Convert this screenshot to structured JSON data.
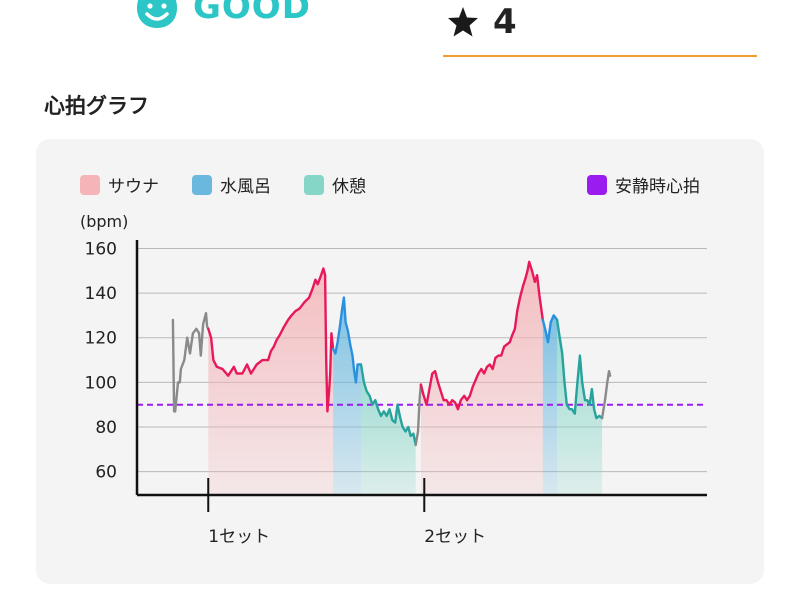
{
  "header": {
    "status_label": "GOOD",
    "status_icon": "smiley-face-icon",
    "rating_icon": "star-icon",
    "rating_value": "4"
  },
  "section_title": "心拍グラフ",
  "colors": {
    "status": "#2cc6c6",
    "rating_underline": "#f0a030",
    "sauna": "#f4b4b8",
    "sauna_line": "#e8195a",
    "cold_bath": "#6ab8de",
    "cold_bath_line": "#2a90e0",
    "rest": "#86d6c8",
    "rest_line": "#27a39e",
    "resting_hr": "#9b1cf0",
    "other_line": "#8a8a8a"
  },
  "chart_data": {
    "type": "line",
    "title": "",
    "xlabel": "",
    "ylabel": "(bpm)",
    "ylim": [
      50,
      165
    ],
    "yticks": [
      60,
      80,
      100,
      120,
      140,
      160
    ],
    "xlim": [
      0,
      100
    ],
    "x_ticks": [
      {
        "x": 12.5,
        "label": "1セット"
      },
      {
        "x": 50.4,
        "label": "2セット"
      }
    ],
    "grid": true,
    "legend": [
      {
        "name": "サウナ",
        "color": "#f4b4b8"
      },
      {
        "name": "水風呂",
        "color": "#6ab8de"
      },
      {
        "name": "休憩",
        "color": "#86d6c8"
      },
      {
        "name": "安静時心拍",
        "color": "#9b1cf0"
      }
    ],
    "resting_hr": 90,
    "phases": [
      {
        "type": "sauna",
        "start": 12.5,
        "end": 34.4
      },
      {
        "type": "cold",
        "start": 34.4,
        "end": 39.3
      },
      {
        "type": "rest",
        "start": 39.3,
        "end": 48.9
      },
      {
        "type": "sauna",
        "start": 49.8,
        "end": 71.2
      },
      {
        "type": "cold",
        "start": 71.2,
        "end": 73.7
      },
      {
        "type": "rest",
        "start": 73.7,
        "end": 81.6
      }
    ],
    "segments": [
      {
        "type": "other",
        "points": [
          [
            6.3,
            128
          ],
          [
            6.5,
            87
          ],
          [
            6.7,
            87
          ],
          [
            7.2,
            100
          ],
          [
            7.5,
            100
          ],
          [
            7.7,
            106
          ],
          [
            8.3,
            110
          ],
          [
            8.8,
            120
          ],
          [
            9.3,
            113
          ],
          [
            9.8,
            122
          ],
          [
            10.4,
            124
          ],
          [
            10.9,
            122
          ],
          [
            11.2,
            112
          ],
          [
            11.6,
            126
          ],
          [
            12.1,
            131
          ],
          [
            12.3,
            125
          ],
          [
            12.5,
            124
          ]
        ]
      },
      {
        "type": "sauna",
        "points": [
          [
            12.5,
            124
          ],
          [
            13.0,
            120
          ],
          [
            13.4,
            110
          ],
          [
            14.0,
            107
          ],
          [
            15.0,
            106
          ],
          [
            16.0,
            103
          ],
          [
            17.0,
            107
          ],
          [
            17.5,
            104
          ],
          [
            18.5,
            104
          ],
          [
            19.3,
            108
          ],
          [
            20.0,
            104
          ],
          [
            21.0,
            108
          ],
          [
            22.0,
            110
          ],
          [
            23.0,
            110
          ],
          [
            23.5,
            114
          ],
          [
            24.0,
            116
          ],
          [
            24.5,
            119
          ],
          [
            25.0,
            121
          ],
          [
            25.8,
            125
          ],
          [
            26.5,
            128
          ],
          [
            27.1,
            130
          ],
          [
            27.8,
            132
          ],
          [
            28.5,
            133
          ],
          [
            29.4,
            136
          ],
          [
            30.2,
            138
          ],
          [
            30.8,
            142
          ],
          [
            31.3,
            146
          ],
          [
            31.7,
            144
          ],
          [
            32.3,
            148
          ],
          [
            32.7,
            151
          ],
          [
            33.0,
            148
          ],
          [
            33.2,
            110
          ],
          [
            33.4,
            87
          ],
          [
            33.7,
            96
          ],
          [
            33.9,
            104
          ],
          [
            34.1,
            122
          ],
          [
            34.4,
            115
          ]
        ]
      },
      {
        "type": "cold",
        "points": [
          [
            34.4,
            115
          ],
          [
            34.8,
            113
          ],
          [
            35.2,
            118
          ],
          [
            35.6,
            125
          ],
          [
            36.0,
            133
          ],
          [
            36.3,
            138
          ],
          [
            36.6,
            127
          ],
          [
            37.0,
            123
          ],
          [
            37.4,
            117
          ],
          [
            37.8,
            112
          ],
          [
            38.1,
            105
          ],
          [
            38.4,
            100
          ],
          [
            38.7,
            108
          ],
          [
            39.3,
            108
          ]
        ]
      },
      {
        "type": "rest",
        "points": [
          [
            39.3,
            108
          ],
          [
            39.8,
            100
          ],
          [
            40.3,
            96
          ],
          [
            40.8,
            94
          ],
          [
            41.3,
            90
          ],
          [
            41.8,
            92
          ],
          [
            42.3,
            88
          ],
          [
            42.8,
            85
          ],
          [
            43.3,
            87
          ],
          [
            43.8,
            85
          ],
          [
            44.3,
            88
          ],
          [
            44.8,
            83
          ],
          [
            45.3,
            82
          ],
          [
            45.7,
            90
          ],
          [
            46.2,
            84
          ],
          [
            46.6,
            80
          ],
          [
            47.1,
            78
          ],
          [
            47.6,
            80
          ],
          [
            48.0,
            76
          ],
          [
            48.5,
            77
          ],
          [
            48.9,
            72
          ]
        ]
      },
      {
        "type": "other",
        "points": [
          [
            48.9,
            72
          ],
          [
            49.3,
            78
          ],
          [
            49.6,
            93
          ],
          [
            49.8,
            99
          ]
        ]
      },
      {
        "type": "sauna",
        "points": [
          [
            49.8,
            99
          ],
          [
            50.3,
            94
          ],
          [
            50.8,
            90
          ],
          [
            51.3,
            97
          ],
          [
            51.8,
            104
          ],
          [
            52.3,
            105
          ],
          [
            52.8,
            100
          ],
          [
            53.3,
            96
          ],
          [
            53.8,
            92
          ],
          [
            54.3,
            92
          ],
          [
            54.8,
            90
          ],
          [
            55.3,
            92
          ],
          [
            55.8,
            91
          ],
          [
            56.3,
            88
          ],
          [
            56.8,
            92
          ],
          [
            57.4,
            94
          ],
          [
            57.9,
            92
          ],
          [
            58.4,
            94
          ],
          [
            58.9,
            98
          ],
          [
            59.4,
            101
          ],
          [
            59.9,
            104
          ],
          [
            60.4,
            106
          ],
          [
            60.9,
            104
          ],
          [
            61.4,
            107
          ],
          [
            61.9,
            108
          ],
          [
            62.4,
            106
          ],
          [
            62.9,
            111
          ],
          [
            63.4,
            112
          ],
          [
            63.9,
            112
          ],
          [
            64.4,
            116
          ],
          [
            64.9,
            117
          ],
          [
            65.4,
            118
          ],
          [
            65.8,
            121
          ],
          [
            66.3,
            124
          ],
          [
            66.7,
            132
          ],
          [
            67.2,
            138
          ],
          [
            67.7,
            143
          ],
          [
            68.2,
            147
          ],
          [
            68.5,
            150
          ],
          [
            68.8,
            154
          ],
          [
            69.3,
            150
          ],
          [
            69.8,
            145
          ],
          [
            70.2,
            148
          ],
          [
            70.6,
            139
          ],
          [
            71.2,
            128
          ]
        ]
      },
      {
        "type": "cold",
        "points": [
          [
            71.2,
            128
          ],
          [
            71.6,
            124
          ],
          [
            72.1,
            118
          ],
          [
            72.6,
            127
          ],
          [
            73.1,
            130
          ],
          [
            73.7,
            128
          ]
        ]
      },
      {
        "type": "rest",
        "points": [
          [
            73.7,
            128
          ],
          [
            74.1,
            121
          ],
          [
            74.6,
            113
          ],
          [
            75.0,
            100
          ],
          [
            75.4,
            90
          ],
          [
            75.9,
            88
          ],
          [
            76.3,
            88
          ],
          [
            76.8,
            86
          ],
          [
            77.2,
            98
          ],
          [
            77.7,
            112
          ],
          [
            78.1,
            100
          ],
          [
            78.6,
            92
          ],
          [
            79.0,
            92
          ],
          [
            79.4,
            90
          ],
          [
            79.8,
            97
          ],
          [
            80.2,
            88
          ],
          [
            80.6,
            84
          ],
          [
            81.1,
            85
          ],
          [
            81.6,
            84
          ]
        ]
      },
      {
        "type": "other",
        "points": [
          [
            81.6,
            84
          ],
          [
            82.1,
            92
          ],
          [
            82.5,
            100
          ],
          [
            82.8,
            105
          ],
          [
            83.0,
            103
          ]
        ]
      }
    ]
  }
}
